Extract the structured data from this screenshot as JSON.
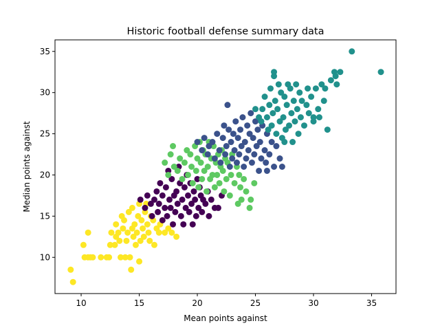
{
  "chart_data": {
    "type": "scatter",
    "title": "Historic football defense summary data",
    "xlabel": "Mean points against",
    "ylabel": "Median points against",
    "xlim": [
      7.75,
      37.1
    ],
    "ylim": [
      5.6,
      36.4
    ],
    "xticks": [
      10,
      15,
      20,
      25,
      30,
      35
    ],
    "yticks": [
      10,
      15,
      20,
      25,
      30,
      35
    ],
    "grid": false,
    "legend": "none",
    "clusters": [
      {
        "color": "#fde725",
        "points": [
          [
            9.1,
            8.5
          ],
          [
            9.3,
            7.0
          ],
          [
            10.2,
            11.5
          ],
          [
            10.3,
            10.0
          ],
          [
            10.6,
            10.0
          ],
          [
            10.6,
            13.0
          ],
          [
            10.8,
            10.0
          ],
          [
            11.0,
            10.0
          ],
          [
            11.7,
            10.0
          ],
          [
            12.2,
            10.0
          ],
          [
            12.4,
            10.0
          ],
          [
            12.5,
            11.5
          ],
          [
            12.6,
            13.0
          ],
          [
            12.9,
            11.5
          ],
          [
            13.0,
            12.5
          ],
          [
            13.0,
            14.0
          ],
          [
            13.2,
            13.0
          ],
          [
            13.3,
            12.0
          ],
          [
            13.4,
            10.0
          ],
          [
            13.5,
            15.0
          ],
          [
            13.6,
            13.5
          ],
          [
            13.7,
            14.5
          ],
          [
            13.8,
            10.0
          ],
          [
            13.9,
            12.0
          ],
          [
            14.0,
            13.0
          ],
          [
            14.1,
            15.5
          ],
          [
            14.2,
            10.0
          ],
          [
            14.3,
            8.5
          ],
          [
            14.4,
            16.0
          ],
          [
            14.4,
            13.5
          ],
          [
            14.5,
            12.5
          ],
          [
            14.6,
            14.0
          ],
          [
            14.7,
            11.5
          ],
          [
            14.8,
            13.0
          ],
          [
            14.9,
            15.0
          ],
          [
            15.0,
            16.5
          ],
          [
            15.0,
            9.5
          ],
          [
            15.1,
            12.0
          ],
          [
            15.2,
            14.5
          ],
          [
            15.3,
            13.5
          ],
          [
            15.4,
            12.5
          ],
          [
            15.5,
            15.5
          ],
          [
            15.6,
            16.5
          ],
          [
            15.7,
            14.0
          ],
          [
            15.8,
            13.0
          ],
          [
            15.9,
            12.0
          ],
          [
            16.0,
            15.0
          ],
          [
            16.2,
            14.5
          ],
          [
            16.3,
            11.5
          ],
          [
            16.5,
            13.5
          ],
          [
            16.7,
            13.0
          ],
          [
            16.8,
            14.0
          ],
          [
            17.0,
            14.5
          ],
          [
            17.2,
            13.0
          ],
          [
            17.5,
            13.5
          ],
          [
            17.8,
            13.0
          ],
          [
            18.2,
            12.5
          ]
        ]
      },
      {
        "color": "#440154",
        "points": [
          [
            15.1,
            17.0
          ],
          [
            15.5,
            16.0
          ],
          [
            15.7,
            17.5
          ],
          [
            16.0,
            16.5
          ],
          [
            16.1,
            15.0
          ],
          [
            16.3,
            17.0
          ],
          [
            16.5,
            18.0
          ],
          [
            16.6,
            15.5
          ],
          [
            16.7,
            16.5
          ],
          [
            16.8,
            19.0
          ],
          [
            17.0,
            17.5
          ],
          [
            17.0,
            14.5
          ],
          [
            17.2,
            16.0
          ],
          [
            17.3,
            18.5
          ],
          [
            17.4,
            15.0
          ],
          [
            17.5,
            20.5
          ],
          [
            17.6,
            17.0
          ],
          [
            17.7,
            16.0
          ],
          [
            17.8,
            19.5
          ],
          [
            17.9,
            14.0
          ],
          [
            18.0,
            17.5
          ],
          [
            18.1,
            15.5
          ],
          [
            18.2,
            18.0
          ],
          [
            18.3,
            16.5
          ],
          [
            18.4,
            21.0
          ],
          [
            18.5,
            19.0
          ],
          [
            18.6,
            15.0
          ],
          [
            18.7,
            17.0
          ],
          [
            18.8,
            14.0
          ],
          [
            18.9,
            18.5
          ],
          [
            19.0,
            16.0
          ],
          [
            19.1,
            20.0
          ],
          [
            19.2,
            17.5
          ],
          [
            19.3,
            15.5
          ],
          [
            19.4,
            19.0
          ],
          [
            19.5,
            16.5
          ],
          [
            19.6,
            14.0
          ],
          [
            19.7,
            18.0
          ],
          [
            19.8,
            17.0
          ],
          [
            19.9,
            15.0
          ],
          [
            20.0,
            19.5
          ],
          [
            20.1,
            16.0
          ],
          [
            20.2,
            18.5
          ],
          [
            20.3,
            17.5
          ],
          [
            20.4,
            15.5
          ],
          [
            20.5,
            17.0
          ],
          [
            20.7,
            16.5
          ],
          [
            20.9,
            18.0
          ],
          [
            21.0,
            15.0
          ],
          [
            21.2,
            17.0
          ],
          [
            21.5,
            16.0
          ],
          [
            22.1,
            17.5
          ],
          [
            21.8,
            16.0
          ]
        ]
      },
      {
        "color": "#5ec962",
        "points": [
          [
            17.2,
            21.5
          ],
          [
            17.5,
            20.0
          ],
          [
            17.7,
            22.5
          ],
          [
            17.9,
            23.5
          ],
          [
            18.0,
            21.0
          ],
          [
            18.3,
            20.5
          ],
          [
            18.5,
            22.0
          ],
          [
            18.7,
            19.5
          ],
          [
            18.9,
            21.5
          ],
          [
            19.1,
            23.0
          ],
          [
            19.2,
            20.0
          ],
          [
            19.4,
            22.5
          ],
          [
            19.5,
            21.0
          ],
          [
            19.6,
            19.0
          ],
          [
            19.8,
            23.5
          ],
          [
            19.9,
            20.5
          ],
          [
            20.0,
            22.0
          ],
          [
            20.1,
            18.5
          ],
          [
            20.2,
            24.0
          ],
          [
            20.3,
            21.5
          ],
          [
            20.4,
            19.5
          ],
          [
            20.5,
            23.0
          ],
          [
            20.6,
            20.5
          ],
          [
            20.7,
            22.5
          ],
          [
            20.8,
            18.0
          ],
          [
            20.9,
            21.0
          ],
          [
            21.0,
            24.0
          ],
          [
            21.1,
            19.5
          ],
          [
            21.2,
            22.0
          ],
          [
            21.3,
            20.0
          ],
          [
            21.4,
            23.5
          ],
          [
            21.5,
            18.5
          ],
          [
            21.6,
            21.5
          ],
          [
            21.7,
            20.0
          ],
          [
            21.8,
            22.5
          ],
          [
            21.9,
            19.0
          ],
          [
            22.0,
            21.0
          ],
          [
            22.1,
            23.0
          ],
          [
            22.2,
            20.5
          ],
          [
            22.3,
            18.0
          ],
          [
            22.4,
            22.0
          ],
          [
            22.5,
            19.5
          ],
          [
            22.6,
            21.5
          ],
          [
            22.8,
            17.5
          ],
          [
            22.9,
            20.0
          ],
          [
            23.0,
            22.5
          ],
          [
            23.2,
            19.0
          ],
          [
            23.4,
            21.0
          ],
          [
            23.5,
            16.5
          ],
          [
            23.6,
            20.0
          ],
          [
            23.7,
            18.5
          ],
          [
            23.8,
            17.0
          ],
          [
            24.0,
            19.5
          ],
          [
            24.2,
            18.0
          ],
          [
            24.5,
            16.0
          ],
          [
            24.6,
            17.0
          ],
          [
            24.9,
            19.0
          ]
        ]
      },
      {
        "color": "#3b528b",
        "points": [
          [
            20.0,
            24.0
          ],
          [
            20.4,
            23.0
          ],
          [
            20.6,
            24.5
          ],
          [
            20.9,
            22.5
          ],
          [
            21.0,
            23.5
          ],
          [
            21.3,
            24.0
          ],
          [
            21.5,
            22.0
          ],
          [
            21.7,
            25.0
          ],
          [
            21.9,
            23.0
          ],
          [
            22.0,
            21.5
          ],
          [
            22.2,
            24.5
          ],
          [
            22.3,
            26.0
          ],
          [
            22.4,
            22.5
          ],
          [
            22.5,
            23.5
          ],
          [
            22.6,
            28.5
          ],
          [
            22.7,
            25.5
          ],
          [
            22.8,
            21.0
          ],
          [
            22.9,
            24.0
          ],
          [
            23.0,
            22.0
          ],
          [
            23.1,
            25.0
          ],
          [
            23.2,
            23.0
          ],
          [
            23.3,
            26.5
          ],
          [
            23.4,
            21.5
          ],
          [
            23.5,
            24.5
          ],
          [
            23.6,
            22.5
          ],
          [
            23.7,
            25.5
          ],
          [
            23.8,
            23.5
          ],
          [
            23.9,
            27.0
          ],
          [
            24.0,
            21.0
          ],
          [
            24.1,
            24.0
          ],
          [
            24.2,
            22.0
          ],
          [
            24.3,
            26.0
          ],
          [
            24.4,
            23.0
          ],
          [
            24.5,
            25.0
          ],
          [
            24.6,
            27.5
          ],
          [
            24.7,
            21.5
          ],
          [
            24.8,
            24.5
          ],
          [
            24.9,
            22.5
          ],
          [
            25.0,
            26.5
          ],
          [
            25.1,
            23.5
          ],
          [
            25.2,
            25.5
          ],
          [
            25.3,
            20.5
          ],
          [
            25.4,
            24.0
          ],
          [
            25.5,
            22.0
          ],
          [
            25.6,
            26.0
          ],
          [
            25.8,
            23.0
          ],
          [
            25.9,
            21.5
          ],
          [
            26.0,
            25.0
          ],
          [
            26.2,
            22.5
          ],
          [
            26.4,
            24.0
          ],
          [
            26.6,
            21.0
          ],
          [
            26.8,
            23.5
          ],
          [
            27.1,
            22.0
          ],
          [
            27.3,
            21.0
          ],
          [
            26.0,
            20.5
          ]
        ]
      },
      {
        "color": "#21918c",
        "points": [
          [
            25.0,
            28.0
          ],
          [
            25.3,
            27.0
          ],
          [
            25.5,
            26.5
          ],
          [
            25.6,
            28.0
          ],
          [
            25.8,
            29.5
          ],
          [
            26.0,
            27.0
          ],
          [
            26.1,
            25.5
          ],
          [
            26.2,
            28.5
          ],
          [
            26.3,
            30.5
          ],
          [
            26.4,
            26.0
          ],
          [
            26.5,
            27.5
          ],
          [
            26.6,
            32.0
          ],
          [
            26.6,
            32.5
          ],
          [
            26.7,
            29.0
          ],
          [
            26.8,
            25.0
          ],
          [
            26.9,
            28.0
          ],
          [
            27.0,
            31.0
          ],
          [
            27.1,
            26.5
          ],
          [
            27.2,
            30.0
          ],
          [
            27.3,
            24.5
          ],
          [
            27.4,
            27.0
          ],
          [
            27.5,
            29.5
          ],
          [
            27.6,
            25.5
          ],
          [
            27.7,
            28.5
          ],
          [
            27.8,
            31.0
          ],
          [
            27.9,
            26.0
          ],
          [
            28.0,
            30.5
          ],
          [
            28.1,
            27.5
          ],
          [
            28.2,
            24.0
          ],
          [
            28.3,
            29.0
          ],
          [
            28.4,
            26.5
          ],
          [
            28.5,
            31.0
          ],
          [
            28.6,
            28.0
          ],
          [
            28.7,
            25.0
          ],
          [
            28.8,
            30.0
          ],
          [
            28.9,
            27.0
          ],
          [
            29.0,
            29.0
          ],
          [
            29.2,
            26.0
          ],
          [
            29.4,
            28.5
          ],
          [
            29.5,
            30.5
          ],
          [
            29.6,
            27.5
          ],
          [
            29.8,
            29.5
          ],
          [
            30.0,
            26.5
          ],
          [
            30.2,
            30.5
          ],
          [
            30.4,
            28.0
          ],
          [
            30.5,
            27.0
          ],
          [
            30.7,
            31.0
          ],
          [
            30.9,
            29.0
          ],
          [
            31.0,
            30.5
          ],
          [
            31.2,
            25.5
          ],
          [
            31.5,
            31.5
          ],
          [
            31.8,
            32.5
          ],
          [
            31.9,
            32.0
          ],
          [
            32.0,
            31.0
          ],
          [
            32.3,
            32.5
          ],
          [
            33.3,
            35.0
          ],
          [
            35.8,
            32.5
          ],
          [
            27.5,
            24.0
          ],
          [
            30.0,
            27.0
          ]
        ]
      }
    ]
  }
}
